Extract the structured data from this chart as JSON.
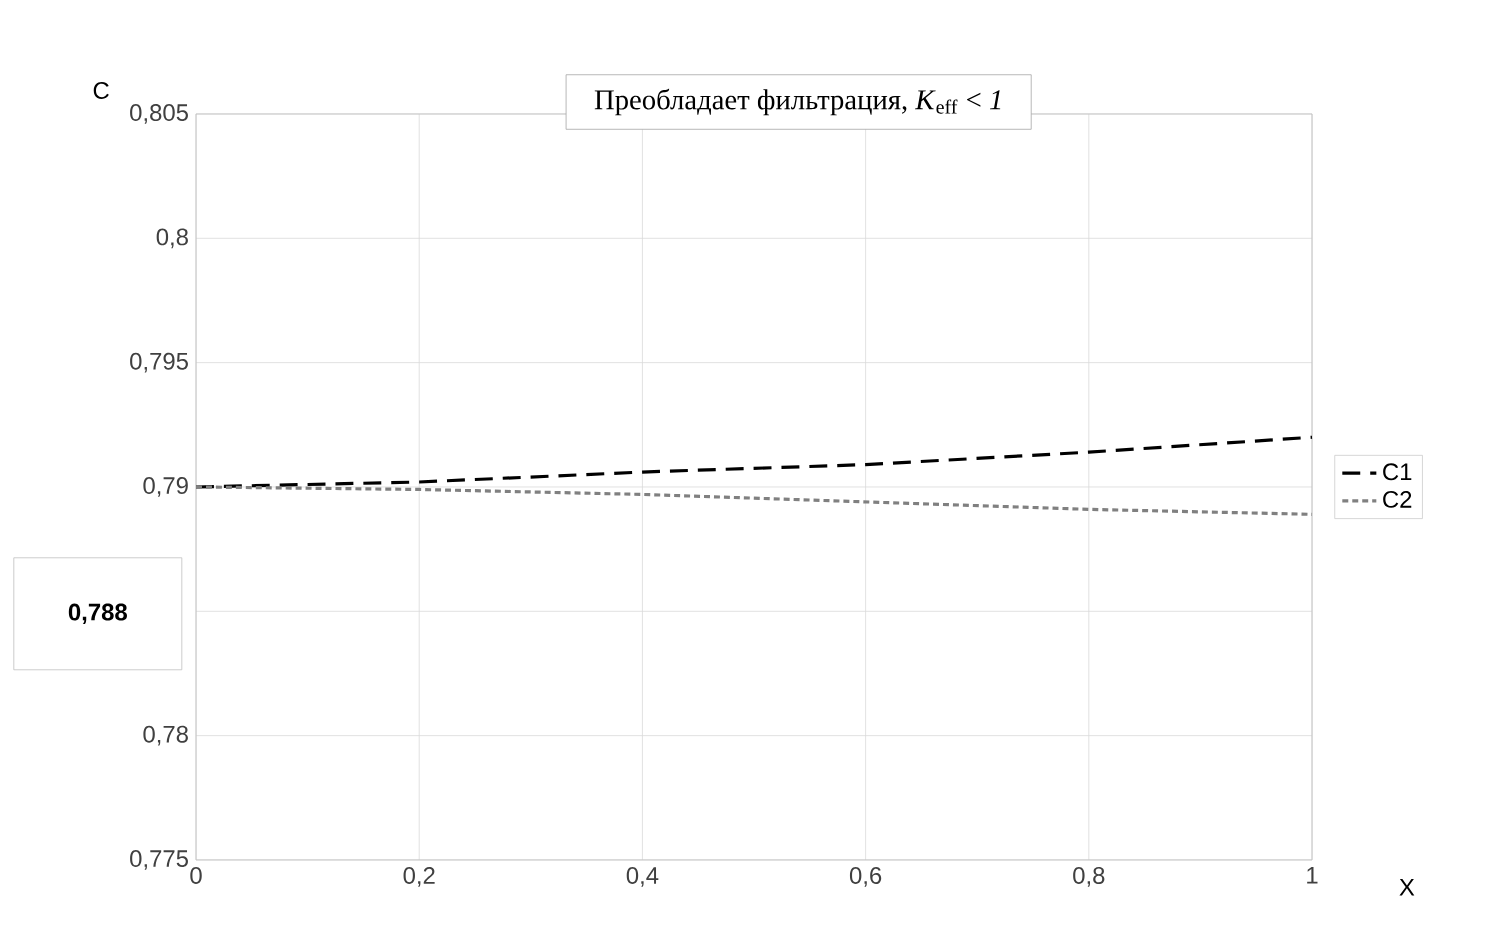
{
  "chart_data": {
    "type": "line",
    "title": "Преобладает фильтрация, *K*$_{eff}$ < *1*",
    "xlabel": "X",
    "ylabel": "C",
    "x": [
      0,
      0.2,
      0.4,
      0.6,
      0.8,
      1
    ],
    "series": [
      {
        "name": "C1",
        "color": "#000000",
        "line_style": "dashed",
        "values": [
          0.79,
          0.7902,
          0.7906,
          0.7909,
          0.7914,
          0.792
        ]
      },
      {
        "name": "C2",
        "color": "#808080",
        "line_style": "dotted",
        "values": [
          0.79,
          0.7899,
          0.7897,
          0.7894,
          0.7891,
          0.7889
        ]
      }
    ],
    "xlim": [
      0,
      1
    ],
    "ylim": [
      0.775,
      0.805
    ],
    "xticks": [
      0,
      {
        "value": 0.2,
        "label": "0,2"
      },
      {
        "value": 0.4,
        "label": "0,4"
      },
      {
        "value": 0.6,
        "label": "0,6"
      },
      {
        "value": 0.8,
        "label": "0,8"
      },
      1
    ],
    "yticks": [
      {
        "value": 0.775,
        "label": "0,775"
      },
      {
        "value": 0.78,
        "label": "0,78"
      },
      {
        "value": 0.785,
        "label": null
      },
      {
        "value": 0.79,
        "label": "0,79"
      },
      {
        "value": 0.795,
        "label": "0,795"
      },
      {
        "value": 0.8,
        "label": "0,8"
      },
      {
        "value": 0.805,
        "label": "0,805"
      }
    ],
    "annotations": [
      "0,788"
    ],
    "grid": true,
    "legend": "right",
    "marker": "none"
  }
}
